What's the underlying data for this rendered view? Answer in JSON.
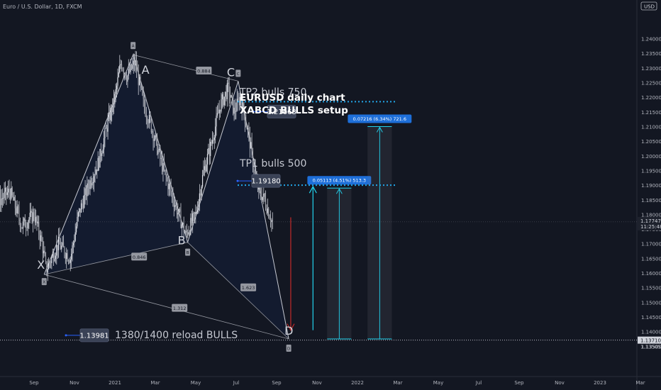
{
  "header": {
    "symbol": "Euro / U.S. Dollar, 1D, FXCM"
  },
  "chart_data": {
    "type": "candlestick",
    "currency": "USD",
    "ylim": [
      1.13,
      1.2515
    ],
    "y_ticks": [
      "1.24000",
      "1.23500",
      "1.23000",
      "1.22500",
      "1.22000",
      "1.21500",
      "1.21000",
      "1.20500",
      "1.20000",
      "1.19500",
      "1.19000",
      "1.18500",
      "1.18000",
      "1.17500",
      "1.17000",
      "1.16500",
      "1.16000",
      "1.15500",
      "1.15000",
      "1.14500",
      "1.14000",
      "1.13500"
    ],
    "x_ticks": [
      "Sep",
      "Nov",
      "2021",
      "Mar",
      "May",
      "Jul",
      "Sep",
      "Nov",
      "2022",
      "Mar",
      "May",
      "Jul",
      "Sep",
      "Nov",
      "2023",
      "Mar"
    ],
    "price_series": {
      "name": "EURUSD",
      "points": [
        {
          "t": -2.15,
          "v": 1.134
        },
        {
          "t": -2.05,
          "v": 1.142
        },
        {
          "t": -1.95,
          "v": 1.178
        },
        {
          "t": -1.85,
          "v": 1.183
        },
        {
          "t": -1.6,
          "v": 1.179
        },
        {
          "t": -1.3,
          "v": 1.189
        },
        {
          "t": -1.0,
          "v": 1.183
        },
        {
          "t": -0.6,
          "v": 1.188
        },
        {
          "t": -0.3,
          "v": 1.176
        },
        {
          "t": 0.0,
          "v": 1.18
        },
        {
          "t": 0.2,
          "v": 1.17
        },
        {
          "t": 0.3,
          "v": 1.161
        },
        {
          "t": 0.6,
          "v": 1.17
        },
        {
          "t": 0.9,
          "v": 1.165
        },
        {
          "t": 1.1,
          "v": 1.18
        },
        {
          "t": 1.35,
          "v": 1.19
        },
        {
          "t": 1.6,
          "v": 1.198
        },
        {
          "t": 1.8,
          "v": 1.21
        },
        {
          "t": 2.0,
          "v": 1.22
        },
        {
          "t": 2.15,
          "v": 1.232
        },
        {
          "t": 2.3,
          "v": 1.227
        },
        {
          "t": 2.5,
          "v": 1.232
        },
        {
          "t": 2.7,
          "v": 1.218
        },
        {
          "t": 2.9,
          "v": 1.21
        },
        {
          "t": 3.2,
          "v": 1.195
        },
        {
          "t": 3.45,
          "v": 1.185
        },
        {
          "t": 3.75,
          "v": 1.173
        },
        {
          "t": 4.0,
          "v": 1.18
        },
        {
          "t": 4.2,
          "v": 1.195
        },
        {
          "t": 4.4,
          "v": 1.205
        },
        {
          "t": 4.6,
          "v": 1.217
        },
        {
          "t": 4.8,
          "v": 1.223
        },
        {
          "t": 4.95,
          "v": 1.215
        },
        {
          "t": 5.1,
          "v": 1.22
        },
        {
          "t": 5.3,
          "v": 1.208
        },
        {
          "t": 5.5,
          "v": 1.19
        },
        {
          "t": 5.7,
          "v": 1.185
        },
        {
          "t": 5.9,
          "v": 1.177
        }
      ]
    },
    "last_price": "1.17747",
    "countdown": "11:25:48",
    "pattern": {
      "name": "XABCD",
      "points": [
        {
          "label": "X",
          "t": 0.25,
          "v": 1.1595
        },
        {
          "label": "A",
          "t": 2.45,
          "v": 1.2345
        },
        {
          "label": "B",
          "t": 3.8,
          "v": 1.1705
        },
        {
          "label": "C",
          "t": 5.05,
          "v": 1.2255
        },
        {
          "label": "D",
          "t": 6.3,
          "v": 1.1375
        }
      ],
      "ratios": [
        {
          "text": "0.884",
          "t": 4.2,
          "v": 1.229
        },
        {
          "text": "0.846",
          "t": 2.6,
          "v": 1.1655
        },
        {
          "text": "1.623",
          "t": 5.3,
          "v": 1.155
        },
        {
          "text": "1.312",
          "t": 3.6,
          "v": 1.148
        }
      ]
    },
    "levels": [
      {
        "name": "TP2",
        "text": "TP2 bulls 750",
        "price_label": "1.21668",
        "v": 1.2185
      },
      {
        "name": "TP1",
        "text": "TP1 bulls 500",
        "price_label": "1.19180",
        "v": 1.19
      },
      {
        "name": "reload",
        "text": "1380/1400 reload BULLS",
        "price_label": "1.13981",
        "v": 1.1385
      }
    ],
    "annotation": [
      "EURUSD daily chart",
      "XABCD BULLS setup"
    ],
    "projections": [
      {
        "label": "0.05113 (4.51%) 513.3",
        "t0": 7.25,
        "t1": 7.85,
        "from": 1.1375,
        "to": 1.189
      },
      {
        "label": "0.07216 (6.34%) 721.6",
        "t0": 8.25,
        "t1": 8.85,
        "from": 1.1375,
        "to": 1.21
      }
    ],
    "arrows": [
      {
        "color": "red",
        "t": 6.35,
        "from": 1.179,
        "to": 1.1405
      },
      {
        "color": "cyan",
        "t": 6.9,
        "from": 1.1405,
        "to": 1.1895
      },
      {
        "color": "cyan",
        "t": 7.55,
        "from": 1.1405,
        "to": 1.1895
      },
      {
        "color": "cyan",
        "t": 8.55,
        "from": 1.1405,
        "to": 1.21
      }
    ],
    "bottom_line": {
      "v": 1.1371,
      "label": "1.13710"
    },
    "bottom_label": "1.13505"
  }
}
